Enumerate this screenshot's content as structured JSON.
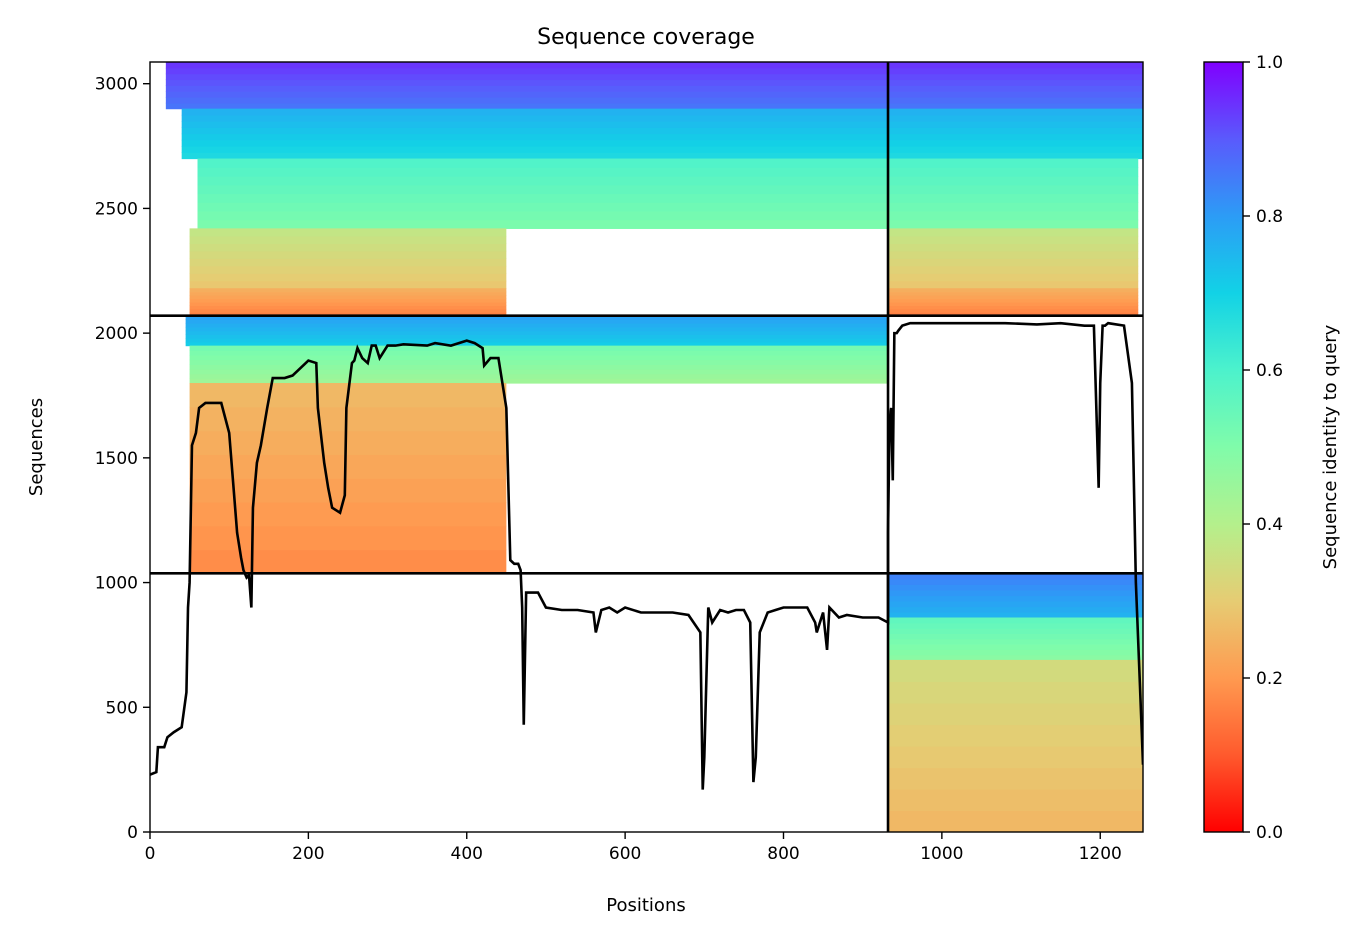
{
  "chart_data": {
    "type": "heatmap",
    "title": "Sequence coverage",
    "xlabel": "Positions",
    "ylabel": "Sequences",
    "xlim": [
      0,
      1254
    ],
    "ylim": [
      0,
      3087
    ],
    "xticks": [
      0,
      200,
      400,
      600,
      800,
      1000,
      1200
    ],
    "yticks": [
      0,
      500,
      1000,
      1500,
      2000,
      2500,
      3000
    ],
    "colorbar": {
      "label": "Sequence identity to query",
      "colormap": "rainbow_r",
      "range": [
        0,
        1
      ],
      "ticks": [
        0.0,
        0.2,
        0.4,
        0.6,
        0.8,
        1.0
      ],
      "tick_labels": [
        "0.0",
        "0.2",
        "0.4",
        "0.6",
        "0.8",
        "1.0"
      ]
    },
    "chain_boundaries_x": [
      932
    ],
    "block_boundaries_y": [
      1037,
      2070
    ],
    "blocks": [
      {
        "rows": [
          2070,
          3087
        ],
        "segments": [
          {
            "cols": [
              0,
              932
            ],
            "bands": [
              {
                "rows": [
                  2900,
                  3087
                ],
                "identity": 0.9,
                "cols": [
                  20,
                  932
                ]
              },
              {
                "rows": [
                  2700,
                  2900
                ],
                "identity": 0.72,
                "cols": [
                  40,
                  932
                ]
              },
              {
                "rows": [
                  2420,
                  2700
                ],
                "identity": 0.55,
                "cols": [
                  60,
                  932
                ]
              },
              {
                "rows": [
                  2180,
                  2420
                ],
                "identity": 0.33,
                "cols": [
                  50,
                  450
                ]
              },
              {
                "rows": [
                  2070,
                  2180
                ],
                "identity": 0.2,
                "cols": [
                  50,
                  450
                ]
              }
            ]
          },
          {
            "cols": [
              932,
              1254
            ],
            "bands": [
              {
                "rows": [
                  2900,
                  3087
                ],
                "identity": 0.9,
                "cols": [
                  932,
                  1254
                ]
              },
              {
                "rows": [
                  2700,
                  2900
                ],
                "identity": 0.72,
                "cols": [
                  932,
                  1254
                ]
              },
              {
                "rows": [
                  2420,
                  2700
                ],
                "identity": 0.55,
                "cols": [
                  932,
                  1248
                ]
              },
              {
                "rows": [
                  2180,
                  2420
                ],
                "identity": 0.33,
                "cols": [
                  932,
                  1248
                ]
              },
              {
                "rows": [
                  2070,
                  2180
                ],
                "identity": 0.2,
                "cols": [
                  932,
                  1248
                ]
              }
            ]
          }
        ]
      },
      {
        "rows": [
          1037,
          2070
        ],
        "segments": [
          {
            "cols": [
              0,
              932
            ],
            "bands": [
              {
                "rows": [
                  1950,
                  2070
                ],
                "identity": 0.75,
                "cols": [
                  45,
                  932
                ]
              },
              {
                "rows": [
                  1800,
                  1950
                ],
                "identity": 0.48,
                "cols": [
                  50,
                  932
                ]
              },
              {
                "rows": [
                  1037,
                  1800
                ],
                "identity": 0.22,
                "cols": [
                  50,
                  450
                ]
              }
            ]
          }
        ]
      },
      {
        "rows": [
          0,
          1037
        ],
        "segments": [
          {
            "cols": [
              932,
              1254
            ],
            "bands": [
              {
                "rows": [
                  860,
                  1037
                ],
                "identity": 0.8,
                "cols": [
                  932,
                  1254
                ]
              },
              {
                "rows": [
                  690,
                  860
                ],
                "identity": 0.52,
                "cols": [
                  932,
                  1254
                ]
              },
              {
                "rows": [
                  0,
                  690
                ],
                "identity": 0.3,
                "cols": [
                  932,
                  1254
                ]
              }
            ]
          }
        ]
      }
    ],
    "coverage_line": {
      "x": [
        0,
        8,
        10,
        18,
        22,
        30,
        40,
        46,
        48,
        50,
        53,
        58,
        62,
        70,
        80,
        90,
        100,
        105,
        110,
        115,
        118,
        122,
        125,
        128,
        130,
        135,
        140,
        148,
        155,
        160,
        170,
        180,
        200,
        210,
        212,
        220,
        225,
        230,
        240,
        246,
        248,
        255,
        258,
        262,
        268,
        275,
        280,
        285,
        290,
        300,
        310,
        320,
        350,
        360,
        380,
        400,
        410,
        420,
        422,
        430,
        440,
        450,
        455,
        460,
        465,
        468,
        470,
        472,
        475,
        480,
        490,
        500,
        520,
        540,
        560,
        563,
        570,
        580,
        590,
        600,
        620,
        640,
        660,
        680,
        695,
        698,
        700,
        705,
        710,
        720,
        730,
        740,
        750,
        758,
        762,
        765,
        770,
        780,
        790,
        800,
        810,
        830,
        840,
        842,
        850,
        855,
        858,
        870,
        880,
        900,
        920,
        932,
        932,
        934,
        936,
        938,
        940,
        943,
        945,
        950,
        960,
        980,
        1000,
        1050,
        1080,
        1120,
        1150,
        1180,
        1192,
        1196,
        1198,
        1200,
        1203,
        1206,
        1210,
        1230,
        1240,
        1245,
        1250,
        1254
      ],
      "y": [
        230,
        240,
        340,
        340,
        380,
        400,
        420,
        560,
        900,
        1000,
        1550,
        1600,
        1700,
        1720,
        1720,
        1720,
        1600,
        1400,
        1200,
        1100,
        1050,
        1020,
        1030,
        900,
        1300,
        1480,
        1550,
        1700,
        1820,
        1820,
        1820,
        1830,
        1890,
        1880,
        1700,
        1480,
        1380,
        1300,
        1280,
        1350,
        1700,
        1880,
        1890,
        1940,
        1900,
        1880,
        1950,
        1950,
        1900,
        1950,
        1950,
        1955,
        1950,
        1960,
        1950,
        1970,
        1960,
        1940,
        1870,
        1900,
        1900,
        1700,
        1090,
        1075,
        1075,
        1050,
        900,
        430,
        960,
        960,
        960,
        900,
        890,
        890,
        880,
        800,
        890,
        900,
        880,
        900,
        880,
        880,
        880,
        870,
        800,
        170,
        300,
        900,
        840,
        890,
        880,
        890,
        890,
        840,
        200,
        300,
        800,
        880,
        890,
        900,
        900,
        900,
        840,
        800,
        880,
        730,
        900,
        860,
        870,
        860,
        860,
        840,
        1200,
        1650,
        1700,
        1410,
        2000,
        2000,
        2010,
        2030,
        2040,
        2040,
        2040,
        2040,
        2040,
        2035,
        2040,
        2030,
        2030,
        1600,
        1380,
        1800,
        2030,
        2030,
        2040,
        2030,
        1800,
        1000,
        600,
        270
      ]
    }
  }
}
